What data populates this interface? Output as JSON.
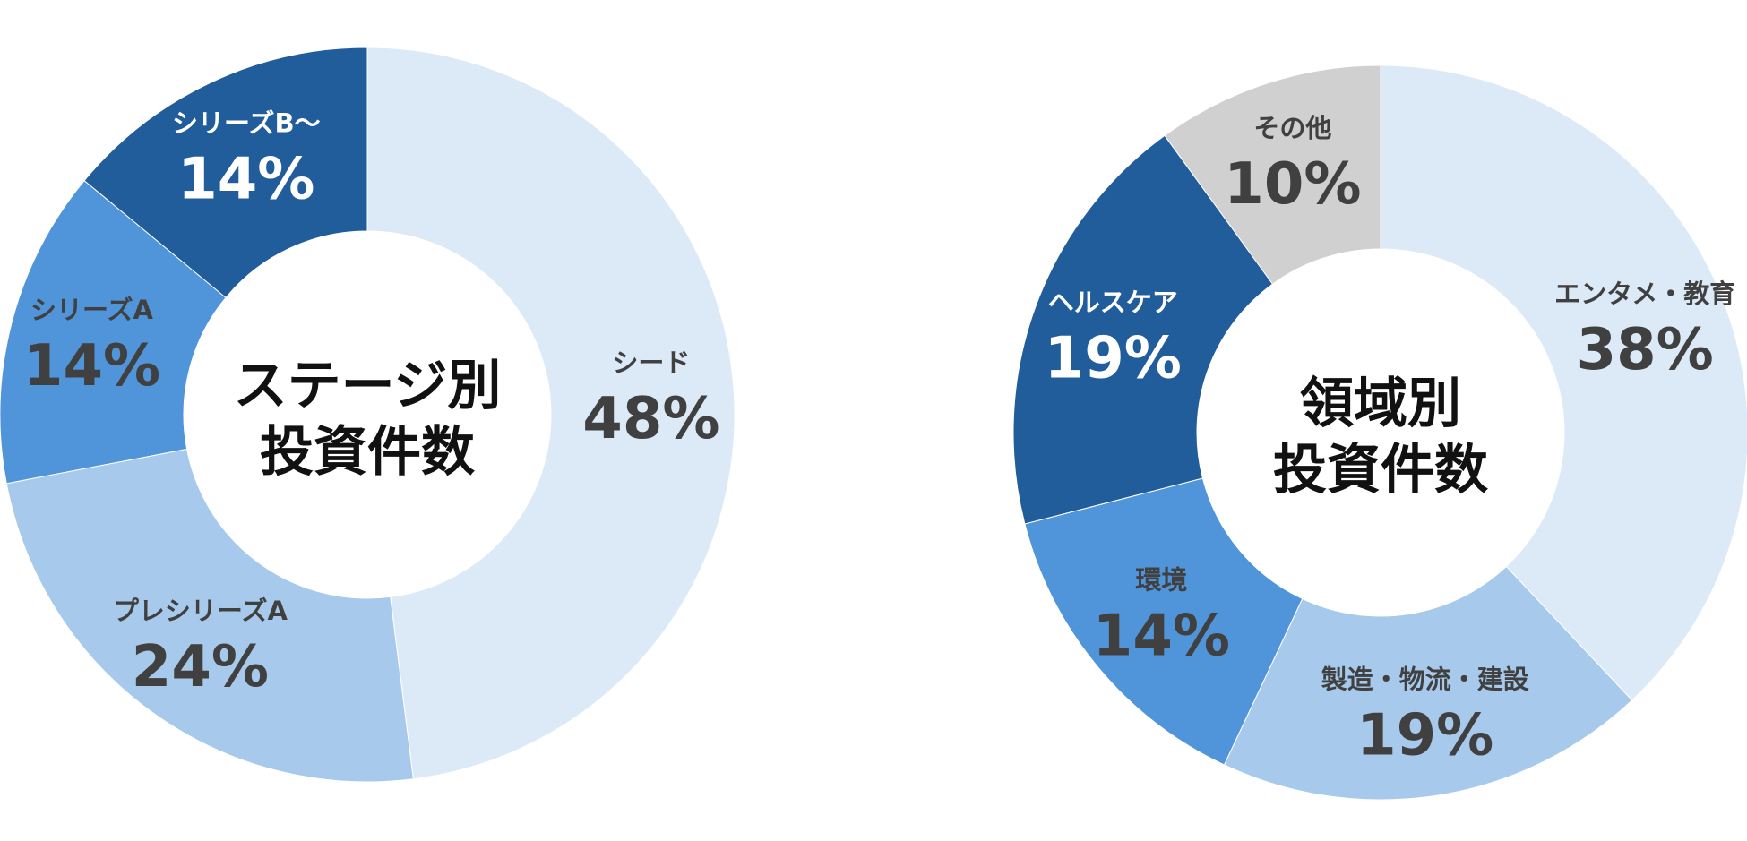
{
  "chart_data": [
    {
      "type": "pie",
      "title_lines": [
        "ステージ別",
        "投資件数"
      ],
      "slices": [
        {
          "label": "シード",
          "value": 48,
          "value_label": "48%",
          "color": "#dce9f7",
          "text_color": "#404040"
        },
        {
          "label": "プレシリーズA",
          "value": 24,
          "value_label": "24%",
          "color": "#a7caec",
          "text_color": "#404040"
        },
        {
          "label": "シリーズA",
          "value": 14,
          "value_label": "14%",
          "color": "#5094d9",
          "text_color": "#404040"
        },
        {
          "label": "シリーズB〜",
          "value": 14,
          "value_label": "14%",
          "color": "#215d9b",
          "text_color": "#ffffff"
        }
      ]
    },
    {
      "type": "pie",
      "title_lines": [
        "領域別",
        "投資件数"
      ],
      "slices": [
        {
          "label": "エンタメ・教育",
          "value": 38,
          "value_label": "38%",
          "color": "#dce9f7",
          "text_color": "#404040"
        },
        {
          "label": "製造・物流・建設",
          "value": 19,
          "value_label": "19%",
          "color": "#a7caec",
          "text_color": "#404040"
        },
        {
          "label": "環境",
          "value": 14,
          "value_label": "14%",
          "color": "#5094d9",
          "text_color": "#404040"
        },
        {
          "label": "ヘルスケア",
          "value": 19,
          "value_label": "19%",
          "color": "#215d9b",
          "text_color": "#ffffff"
        },
        {
          "label": "その他",
          "value": 10,
          "value_label": "10%",
          "color": "#d0d0d0",
          "text_color": "#404040"
        }
      ]
    }
  ]
}
